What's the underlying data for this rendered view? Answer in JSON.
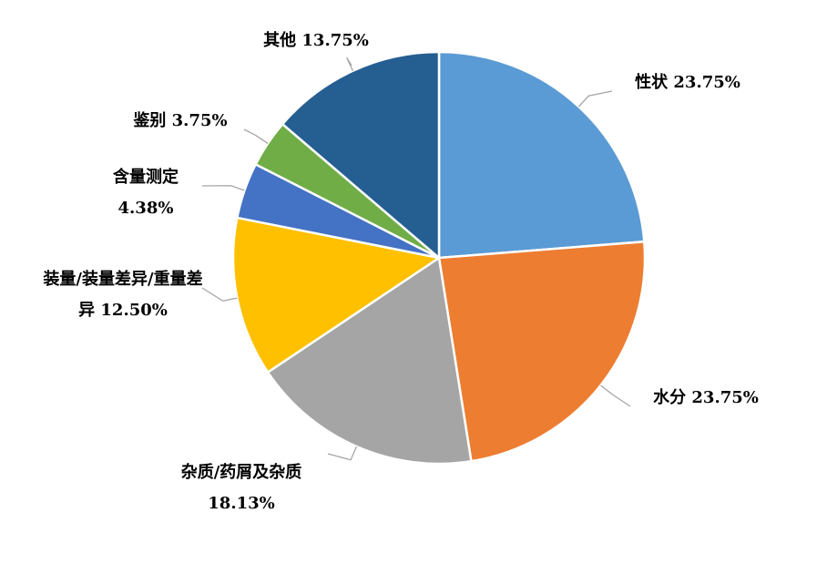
{
  "chart_data": {
    "type": "pie",
    "categories": [
      "性状",
      "水分",
      "杂质/药屑及杂质",
      "装量/装量差异/重量差异",
      "含量测定",
      "鉴别",
      "其他"
    ],
    "values": [
      23.75,
      23.75,
      18.13,
      12.5,
      4.38,
      3.75,
      13.75
    ],
    "value_labels": [
      "23.75%",
      "23.75%",
      "18.13%",
      "12.50%",
      "4.38%",
      "3.75%",
      "13.75%"
    ],
    "colors": [
      "#5b9bd5",
      "#ed7d31",
      "#a5a5a5",
      "#ffc000",
      "#4472c4",
      "#70ad47",
      "#255e91"
    ]
  }
}
